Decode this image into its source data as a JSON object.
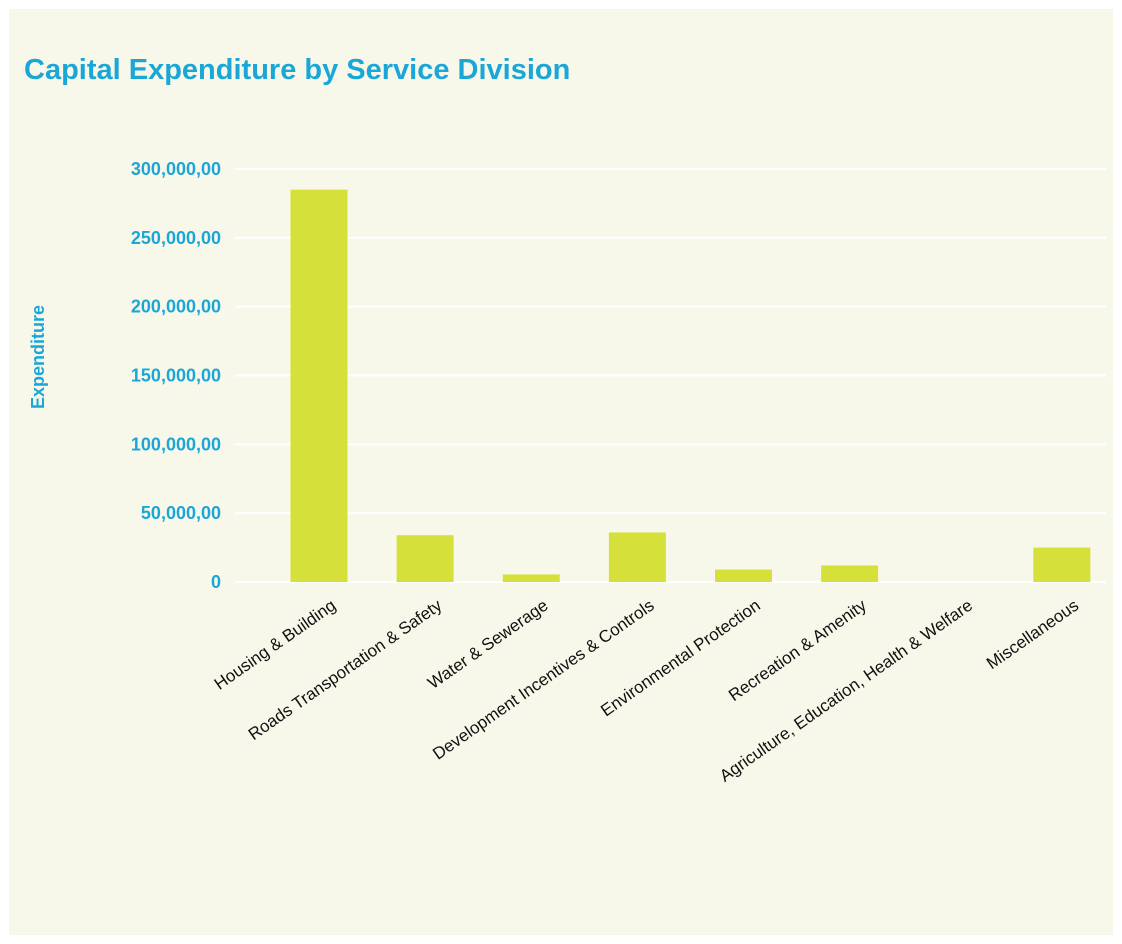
{
  "chart_data": {
    "type": "bar",
    "title": "Capital Expenditure by Service Division",
    "ylabel": "Expenditure",
    "xlabel": "",
    "categories": [
      "Housing & Building",
      "Roads Transportation & Safety",
      "Water & Sewerage",
      "Development Incentives & Controls",
      "Environmental Protection",
      "Recreation & Amenity",
      "Agriculture, Education, Health & Welfare",
      "Miscellaneous"
    ],
    "values": [
      285000,
      34000,
      5500,
      36000,
      9000,
      12000,
      0,
      25000
    ],
    "y_ticks": [
      0,
      50000,
      100000,
      150000,
      200000,
      250000,
      300000
    ],
    "y_tick_labels": [
      "0",
      "50,000,00",
      "100,000,00",
      "150,000,00",
      "200,000,00",
      "250,000,00",
      "300,000,00"
    ],
    "ylim": [
      0,
      300000
    ],
    "grid": true,
    "legend": "none",
    "colors": {
      "bar": "#d5e03a",
      "accent": "#1aa7d8",
      "background": "#f8f8ea",
      "grid": "#ffffff"
    }
  }
}
